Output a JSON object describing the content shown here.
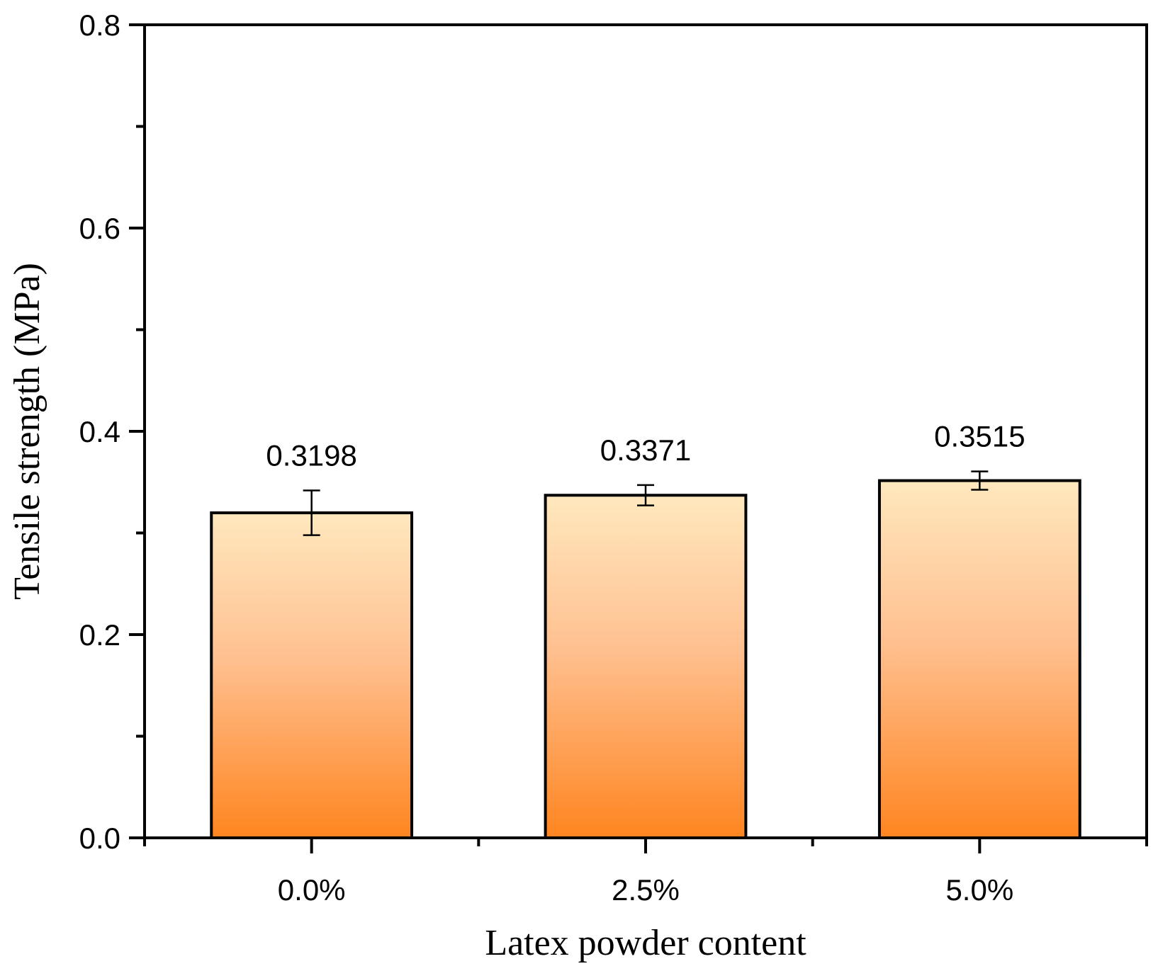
{
  "chart_data": {
    "type": "bar",
    "title": "",
    "xlabel": "Latex powder content",
    "ylabel": "Tensile strength (MPa)",
    "categories": [
      "0.0%",
      "2.5%",
      "5.0%"
    ],
    "values": [
      0.3198,
      0.3371,
      0.3515
    ],
    "error": [
      0.022,
      0.01,
      0.009
    ],
    "data_labels": [
      "0.3198",
      "0.3371",
      "0.3515"
    ],
    "ylim": [
      0,
      0.8
    ],
    "yticks": [
      0.0,
      0.2,
      0.4,
      0.6,
      0.8
    ],
    "ytick_labels": [
      "0.0",
      "0.2",
      "0.4",
      "0.6",
      "0.8"
    ],
    "grid": false,
    "legend": "none",
    "colors": {
      "bar_top": "#FFE8BE",
      "bar_mid": "#FFC090",
      "bar_bottom": "#FF8520",
      "outline": "#000000"
    }
  }
}
